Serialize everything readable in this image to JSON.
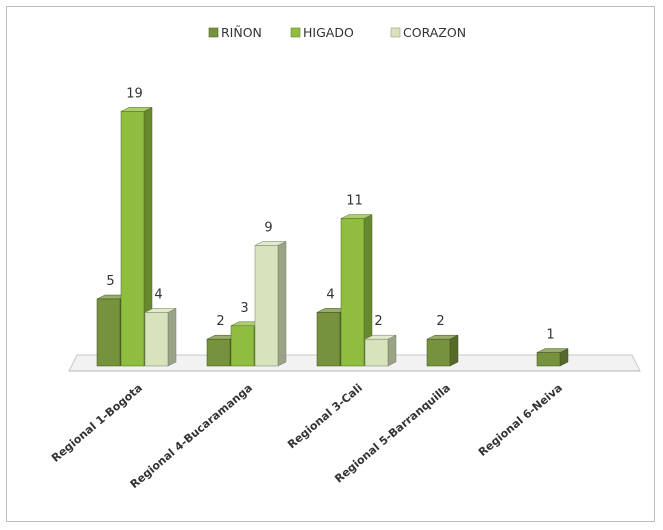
{
  "chart_data": {
    "type": "bar",
    "categories": [
      "Regional 1-Bogota",
      "Regional 4-Bucaramanga",
      "Regional 3-Cali",
      "Regional 5-Barranquilla",
      "Regional 6-Neiva"
    ],
    "series": [
      {
        "name": "RIÑON",
        "values": [
          5,
          2,
          4,
          2,
          1
        ],
        "color": "#76923c"
      },
      {
        "name": "HIGADO",
        "values": [
          19,
          3,
          11,
          null,
          null
        ],
        "color": "#8fbd3f"
      },
      {
        "name": "CORAZON",
        "values": [
          4,
          9,
          2,
          null,
          null
        ],
        "color": "#d6e3bc"
      }
    ],
    "data_labels": [
      [
        "5",
        "2",
        "4",
        "2",
        "1"
      ],
      [
        "19",
        "3",
        "11",
        "",
        ""
      ],
      [
        "4",
        "9",
        "2",
        "",
        ""
      ]
    ],
    "ylim": [
      0,
      20
    ],
    "grid": false,
    "legend_position": "top",
    "style": "3d-column"
  }
}
